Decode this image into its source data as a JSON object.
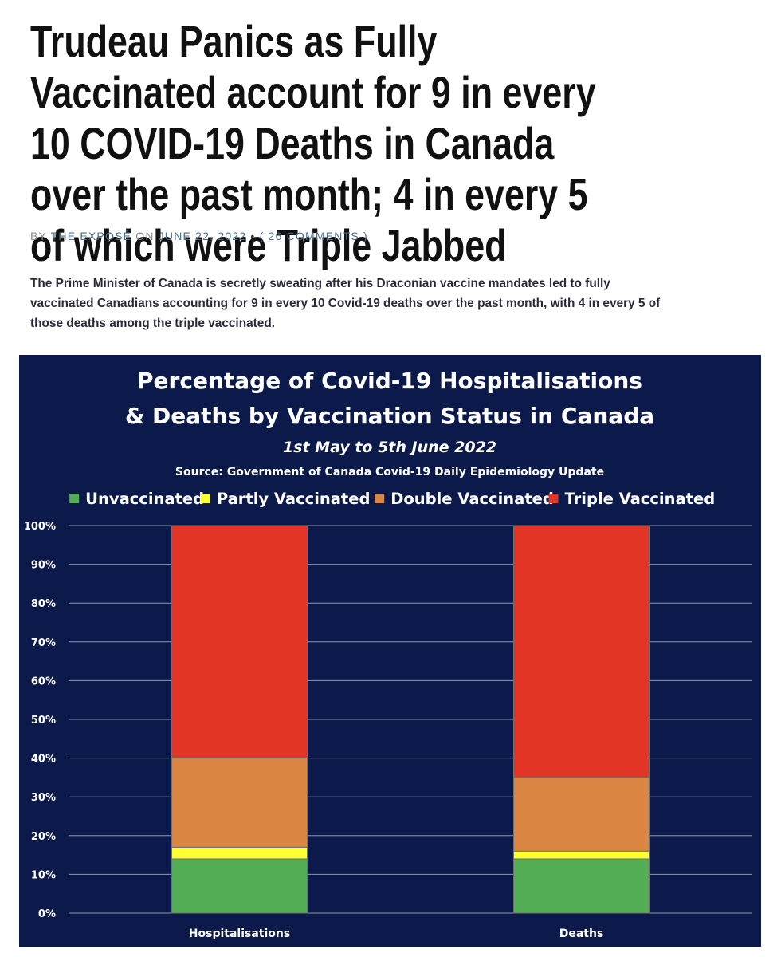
{
  "article": {
    "headline": "Trudeau Panics as Fully Vaccinated account for 9 in every 10 COVID-19 Deaths in Canada over the past month; 4 in every 5 of which were Triple Jabbed",
    "byline": {
      "by": "BY",
      "author": "THE EXPOSÉ",
      "on": "ON",
      "date": "JUNE 22, 2022",
      "separator": "•",
      "comments": "( 26 COMMENTS )"
    },
    "summary": "The Prime Minister of Canada is secretly sweating after his Draconian vaccine mandates led to fully vaccinated Canadians accounting for 9 in every 10 Covid-19 deaths over the past month, with 4 in every 5 of those deaths among the triple vaccinated."
  },
  "colors": {
    "chart_background": "#0b1a4a",
    "unvaccinated": "#52ad55",
    "partly_vaccinated": "#ffff33",
    "double_vaccinated": "#dc8644",
    "triple_vaccinated": "#e33526",
    "text": "#ffffff",
    "gridline": "#8e97b0"
  },
  "chart_data": {
    "type": "bar",
    "stacked": true,
    "title": "Percentage of Covid-19 Hospitalisations & Deaths by Vaccination Status in Canada",
    "title_lines": [
      "Percentage of Covid-19 Hospitalisations",
      "& Deaths by Vaccination Status in Canada"
    ],
    "subtitle": "1st May to 5th June 2022",
    "source": "Source: Government of Canada Covid-19 Daily Epidemiology Update",
    "categories": [
      "Hospitalisations",
      "Deaths"
    ],
    "series": [
      {
        "name": "Unvaccinated",
        "color": "#52ad55",
        "values": [
          14,
          14
        ]
      },
      {
        "name": "Partly Vaccinated",
        "color": "#ffff33",
        "values": [
          3,
          2
        ]
      },
      {
        "name": "Double Vaccinated",
        "color": "#dc8644",
        "values": [
          23,
          19
        ]
      },
      {
        "name": "Triple Vaccinated",
        "color": "#e33526",
        "values": [
          60,
          65
        ]
      }
    ],
    "y_ticks": [
      "0%",
      "10%",
      "20%",
      "30%",
      "40%",
      "50%",
      "60%",
      "70%",
      "80%",
      "90%",
      "100%"
    ],
    "ylim": [
      0,
      100
    ],
    "xlabel": "",
    "ylabel": "",
    "grid": true,
    "legend_position": "top"
  }
}
